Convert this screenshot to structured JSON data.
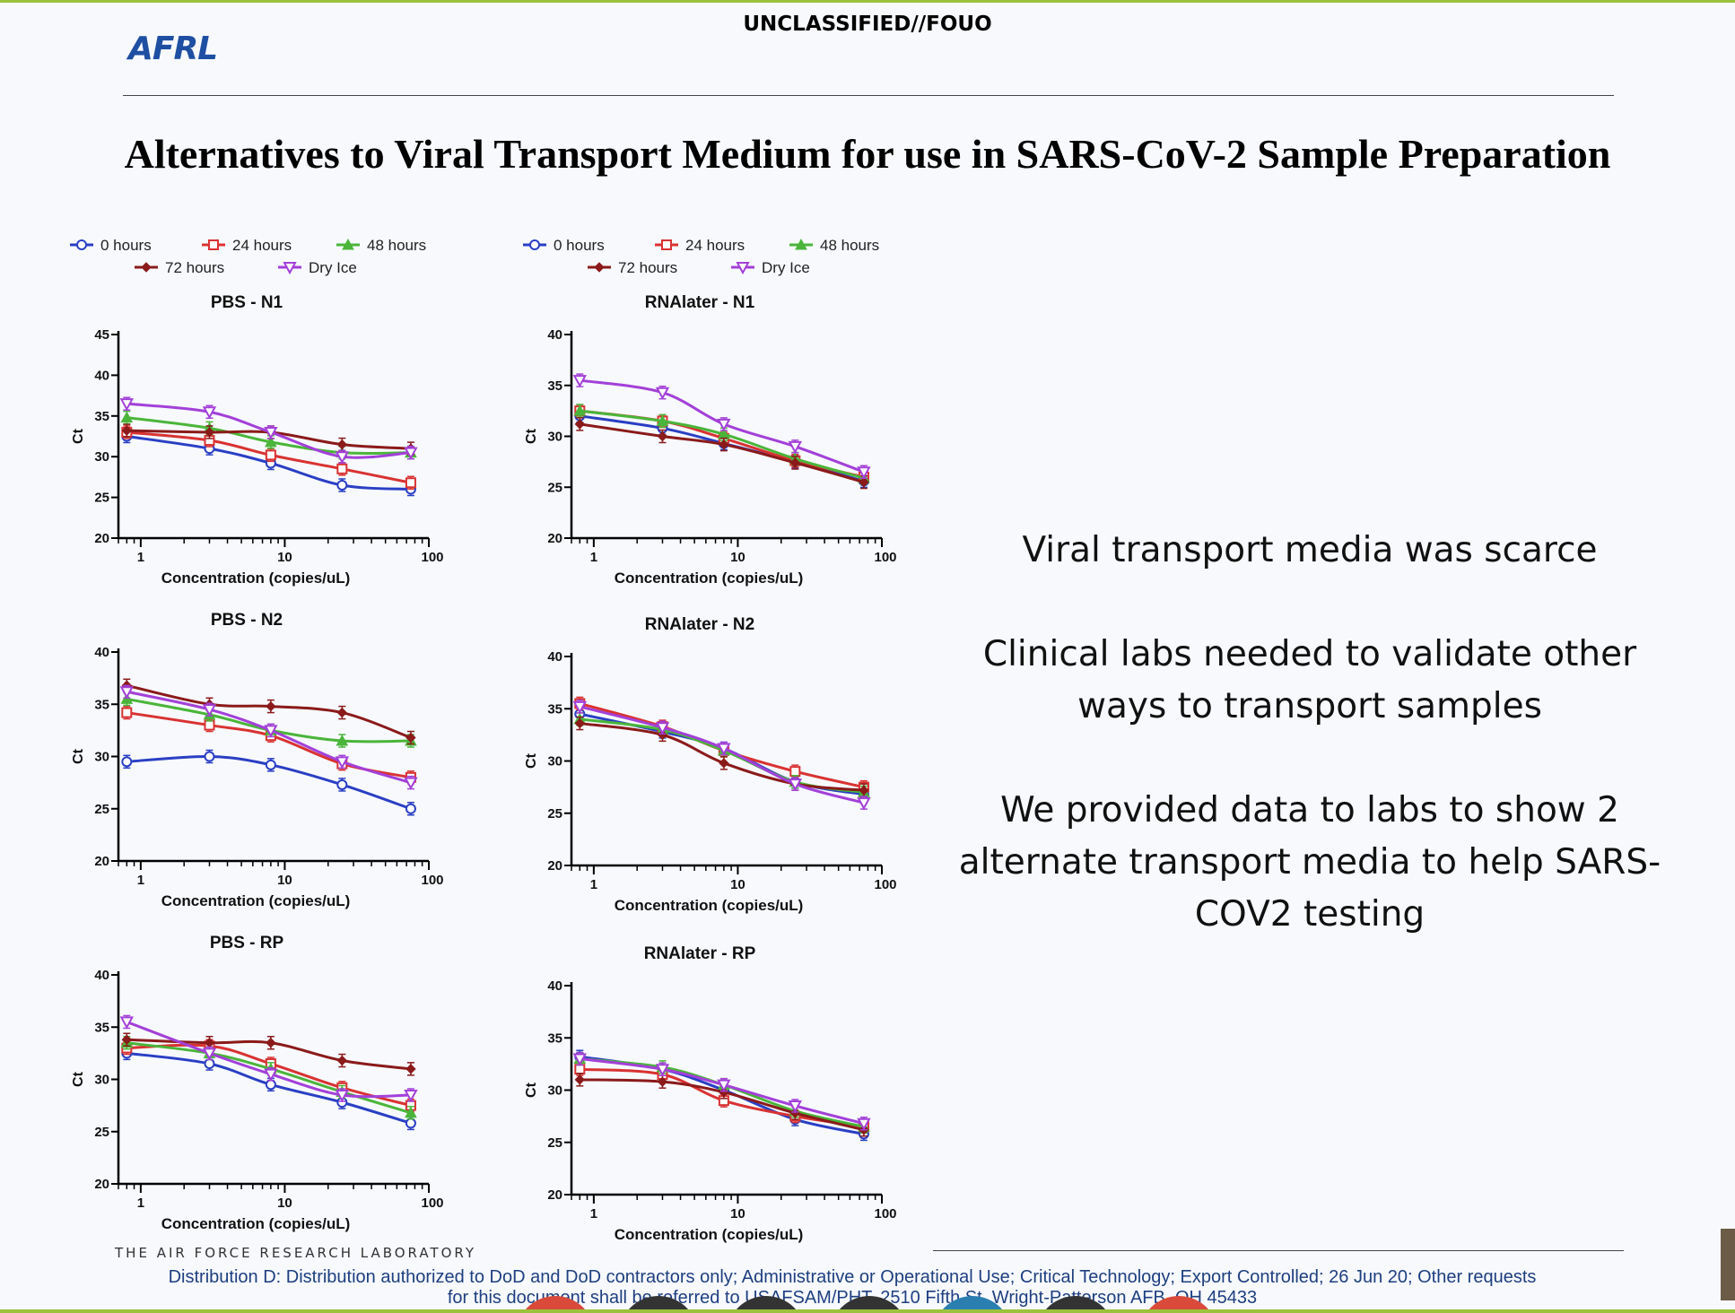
{
  "header": {
    "logo": "AFRL",
    "classification": "UNCLASSIFIED//FOUO",
    "title": "Alternatives to Viral Transport Medium for use in SARS-CoV-2 Sample Preparation"
  },
  "colors": {
    "0 hours": "#2a3fc4",
    "24 hours": "#d93232",
    "48 hours": "#4ab53a",
    "72 hours": "#8b1a1a",
    "Dry Ice": "#a340d9",
    "accent_line": "#9bc23c",
    "logo": "#1f4fa3"
  },
  "chart_data": [
    {
      "type": "line",
      "title": "PBS - N1",
      "xlabel": "Concentration (copies/uL)",
      "ylabel": "Ct",
      "xscale": "log",
      "x": [
        0.8,
        3,
        8,
        25,
        75
      ],
      "ylim": [
        20,
        45
      ],
      "yticks": [
        20,
        25,
        30,
        35,
        40,
        45
      ],
      "xticks": [
        "1",
        "10",
        "100"
      ],
      "legend": [
        "0 hours",
        "24 hours",
        "48 hours",
        "72 hours",
        "Dry Ice"
      ],
      "series": [
        {
          "name": "0 hours",
          "values": [
            32.5,
            31.0,
            29.2,
            26.5,
            26.0
          ]
        },
        {
          "name": "24 hours",
          "values": [
            33.0,
            32.0,
            30.2,
            28.5,
            26.8
          ]
        },
        {
          "name": "48 hours",
          "values": [
            34.8,
            33.5,
            31.8,
            30.5,
            30.5
          ]
        },
        {
          "name": "72 hours",
          "values": [
            33.2,
            33.0,
            33.0,
            31.5,
            31.0
          ]
        },
        {
          "name": "Dry Ice",
          "values": [
            36.5,
            35.5,
            33.0,
            30.0,
            30.5
          ]
        }
      ]
    },
    {
      "type": "line",
      "title": "RNAlater - N1",
      "xlabel": "Concentration (copies/uL)",
      "ylabel": "Ct",
      "xscale": "log",
      "x": [
        0.8,
        3,
        8,
        25,
        75
      ],
      "ylim": [
        20,
        40
      ],
      "yticks": [
        20,
        25,
        30,
        35,
        40
      ],
      "xticks": [
        "1",
        "10",
        "100"
      ],
      "legend": [
        "0 hours",
        "24 hours",
        "48 hours",
        "72 hours",
        "Dry Ice"
      ],
      "series": [
        {
          "name": "0 hours",
          "values": [
            32.0,
            30.8,
            29.3,
            27.5,
            25.6
          ]
        },
        {
          "name": "24 hours",
          "values": [
            32.5,
            31.5,
            29.8,
            27.6,
            26.0
          ]
        },
        {
          "name": "48 hours",
          "values": [
            32.5,
            31.5,
            30.2,
            27.8,
            25.9
          ]
        },
        {
          "name": "72 hours",
          "values": [
            31.2,
            30.0,
            29.2,
            27.4,
            25.5
          ]
        },
        {
          "name": "Dry Ice",
          "values": [
            35.5,
            34.3,
            31.2,
            29.0,
            26.5
          ]
        }
      ]
    },
    {
      "type": "line",
      "title": "PBS - N2",
      "xlabel": "Concentration (copies/uL)",
      "ylabel": "Ct",
      "xscale": "log",
      "x": [
        0.8,
        3,
        8,
        25,
        75
      ],
      "ylim": [
        20,
        40
      ],
      "yticks": [
        20,
        25,
        30,
        35,
        40
      ],
      "xticks": [
        "1",
        "10",
        "100"
      ],
      "legend": [
        "0 hours",
        "24 hours",
        "48 hours",
        "72 hours",
        "Dry Ice"
      ],
      "series": [
        {
          "name": "0 hours",
          "values": [
            29.5,
            30.0,
            29.2,
            27.3,
            25.0
          ]
        },
        {
          "name": "24 hours",
          "values": [
            34.2,
            33.0,
            32.0,
            29.3,
            28.0
          ]
        },
        {
          "name": "48 hours",
          "values": [
            35.5,
            34.0,
            32.5,
            31.5,
            31.5
          ]
        },
        {
          "name": "72 hours",
          "values": [
            36.8,
            35.0,
            34.8,
            34.2,
            31.8
          ]
        },
        {
          "name": "Dry Ice",
          "values": [
            36.2,
            34.5,
            32.5,
            29.5,
            27.5
          ]
        }
      ]
    },
    {
      "type": "line",
      "title": "RNAlater - N2",
      "xlabel": "Concentration (copies/uL)",
      "ylabel": "Ct",
      "xscale": "log",
      "x": [
        0.8,
        3,
        8,
        25,
        75
      ],
      "ylim": [
        20,
        40
      ],
      "yticks": [
        20,
        25,
        30,
        35,
        40
      ],
      "xticks": [
        "1",
        "10",
        "100"
      ],
      "legend": [
        "0 hours",
        "24 hours",
        "48 hours",
        "72 hours",
        "Dry Ice"
      ],
      "series": [
        {
          "name": "0 hours",
          "values": [
            34.5,
            32.8,
            31.2,
            28.0,
            26.8
          ]
        },
        {
          "name": "24 hours",
          "values": [
            35.5,
            33.3,
            31.0,
            29.0,
            27.5
          ]
        },
        {
          "name": "48 hours",
          "values": [
            34.0,
            33.0,
            31.0,
            28.0,
            27.0
          ]
        },
        {
          "name": "72 hours",
          "values": [
            33.6,
            32.5,
            29.8,
            27.8,
            27.2
          ]
        },
        {
          "name": "Dry Ice",
          "values": [
            35.2,
            33.2,
            31.2,
            27.8,
            26.0
          ]
        }
      ]
    },
    {
      "type": "line",
      "title": "PBS - RP",
      "xlabel": "Concentration (copies/uL)",
      "ylabel": "Ct",
      "xscale": "log",
      "x": [
        0.8,
        3,
        8,
        25,
        75
      ],
      "ylim": [
        20,
        40
      ],
      "yticks": [
        20,
        25,
        30,
        35,
        40
      ],
      "xticks": [
        "1",
        "10",
        "100"
      ],
      "legend": [
        "0 hours",
        "24 hours",
        "48 hours",
        "72 hours",
        "Dry Ice"
      ],
      "series": [
        {
          "name": "0 hours",
          "values": [
            32.5,
            31.5,
            29.5,
            27.8,
            25.8
          ]
        },
        {
          "name": "24 hours",
          "values": [
            33.0,
            33.2,
            31.5,
            29.2,
            27.5
          ]
        },
        {
          "name": "48 hours",
          "values": [
            33.5,
            32.5,
            31.0,
            28.8,
            26.8
          ]
        },
        {
          "name": "72 hours",
          "values": [
            33.8,
            33.5,
            33.5,
            31.8,
            31.0
          ]
        },
        {
          "name": "Dry Ice",
          "values": [
            35.5,
            32.5,
            30.5,
            28.5,
            28.5
          ]
        }
      ]
    },
    {
      "type": "line",
      "title": "RNAlater - RP",
      "xlabel": "Concentration (copies/uL)",
      "ylabel": "Ct",
      "xscale": "log",
      "x": [
        0.8,
        3,
        8,
        25,
        75
      ],
      "ylim": [
        20,
        40
      ],
      "yticks": [
        20,
        25,
        30,
        35,
        40
      ],
      "xticks": [
        "1",
        "10",
        "100"
      ],
      "legend": [
        "0 hours",
        "24 hours",
        "48 hours",
        "72 hours",
        "Dry Ice"
      ],
      "series": [
        {
          "name": "0 hours",
          "values": [
            33.2,
            32.0,
            30.0,
            27.2,
            25.8
          ]
        },
        {
          "name": "24 hours",
          "values": [
            32.0,
            31.5,
            29.0,
            27.5,
            26.5
          ]
        },
        {
          "name": "48 hours",
          "values": [
            33.0,
            32.2,
            30.5,
            28.0,
            26.5
          ]
        },
        {
          "name": "72 hours",
          "values": [
            31.0,
            30.8,
            29.8,
            27.8,
            26.2
          ]
        },
        {
          "name": "Dry Ice",
          "values": [
            33.0,
            32.0,
            30.5,
            28.5,
            26.8
          ]
        }
      ]
    }
  ],
  "bullets": [
    "Viral transport media was scarce",
    "Clinical labs needed to validate other ways to transport samples",
    "We provided data to labs to show 2 alternate transport media to help SARS-COV2 testing"
  ],
  "footer": {
    "lab": "THE AIR FORCE RESEARCH LABORATORY",
    "distribution_line1": "Distribution D: Distribution authorized to DoD and DoD contractors only; Administrative or Operational Use; Critical Technology; Export Controlled; 26 Jun 20; Other requests",
    "distribution_line2": "for this document shall be referred to USAFSAM/PHT, 2510 Fifth St, Wright-Patterson AFB, OH 45433"
  }
}
